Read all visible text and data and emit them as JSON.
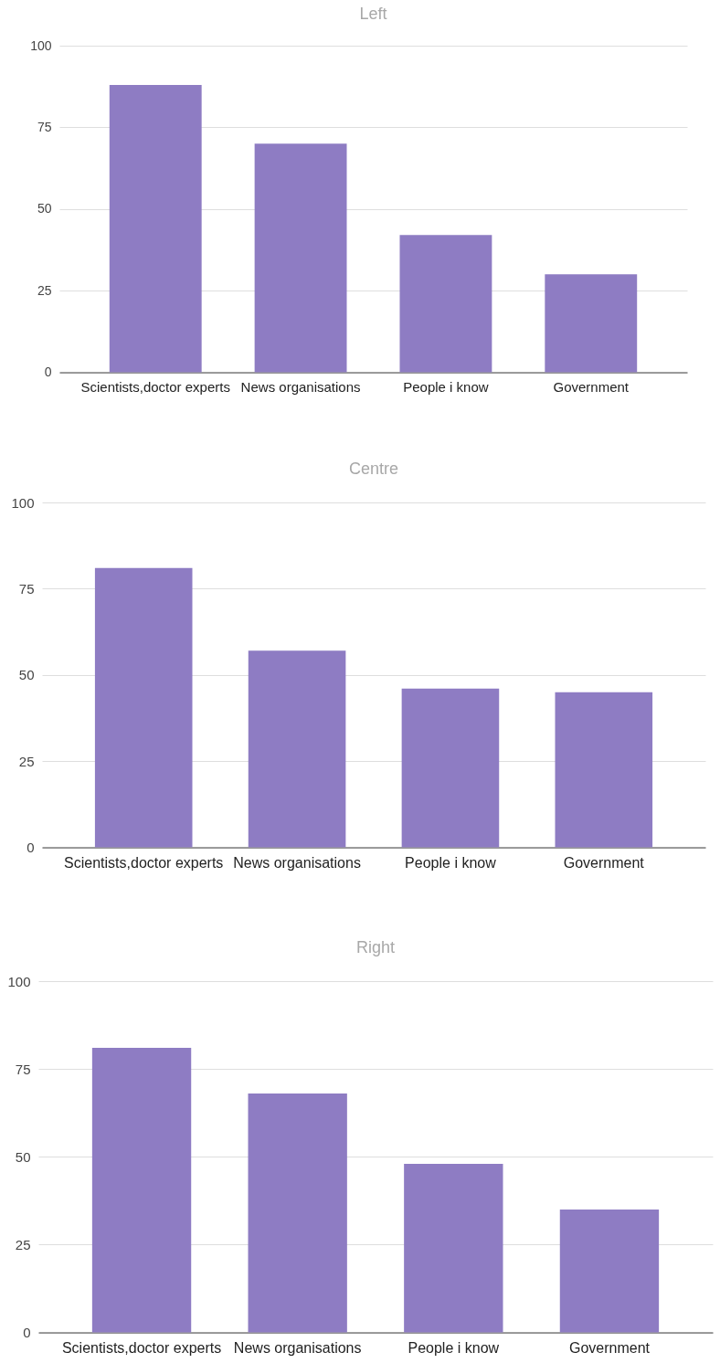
{
  "chart_data": [
    {
      "type": "bar",
      "title": "Left",
      "categories": [
        "Scientists,doctor experts",
        "News organisations",
        "People i know",
        "Government"
      ],
      "values": [
        88,
        70,
        42,
        30
      ],
      "color": "#8e7cc3",
      "ylim": [
        0,
        100
      ],
      "yticks": [
        0,
        25,
        50,
        75,
        100
      ],
      "grid": "y"
    },
    {
      "type": "bar",
      "title": "Centre",
      "categories": [
        "Scientists,doctor experts",
        "News organisations",
        "People i know",
        "Government"
      ],
      "values": [
        81,
        57,
        46,
        45
      ],
      "color": "#8e7cc3",
      "ylim": [
        0,
        100
      ],
      "yticks": [
        0,
        25,
        50,
        75,
        100
      ],
      "grid": "y"
    },
    {
      "type": "bar",
      "title": "Right",
      "categories": [
        "Scientists,doctor experts",
        "News organisations",
        "People i know",
        "Government"
      ],
      "values": [
        81,
        68,
        48,
        35
      ],
      "color": "#8e7cc3",
      "ylim": [
        0,
        100
      ],
      "yticks": [
        0,
        25,
        50,
        75,
        100
      ],
      "grid": "y"
    }
  ]
}
